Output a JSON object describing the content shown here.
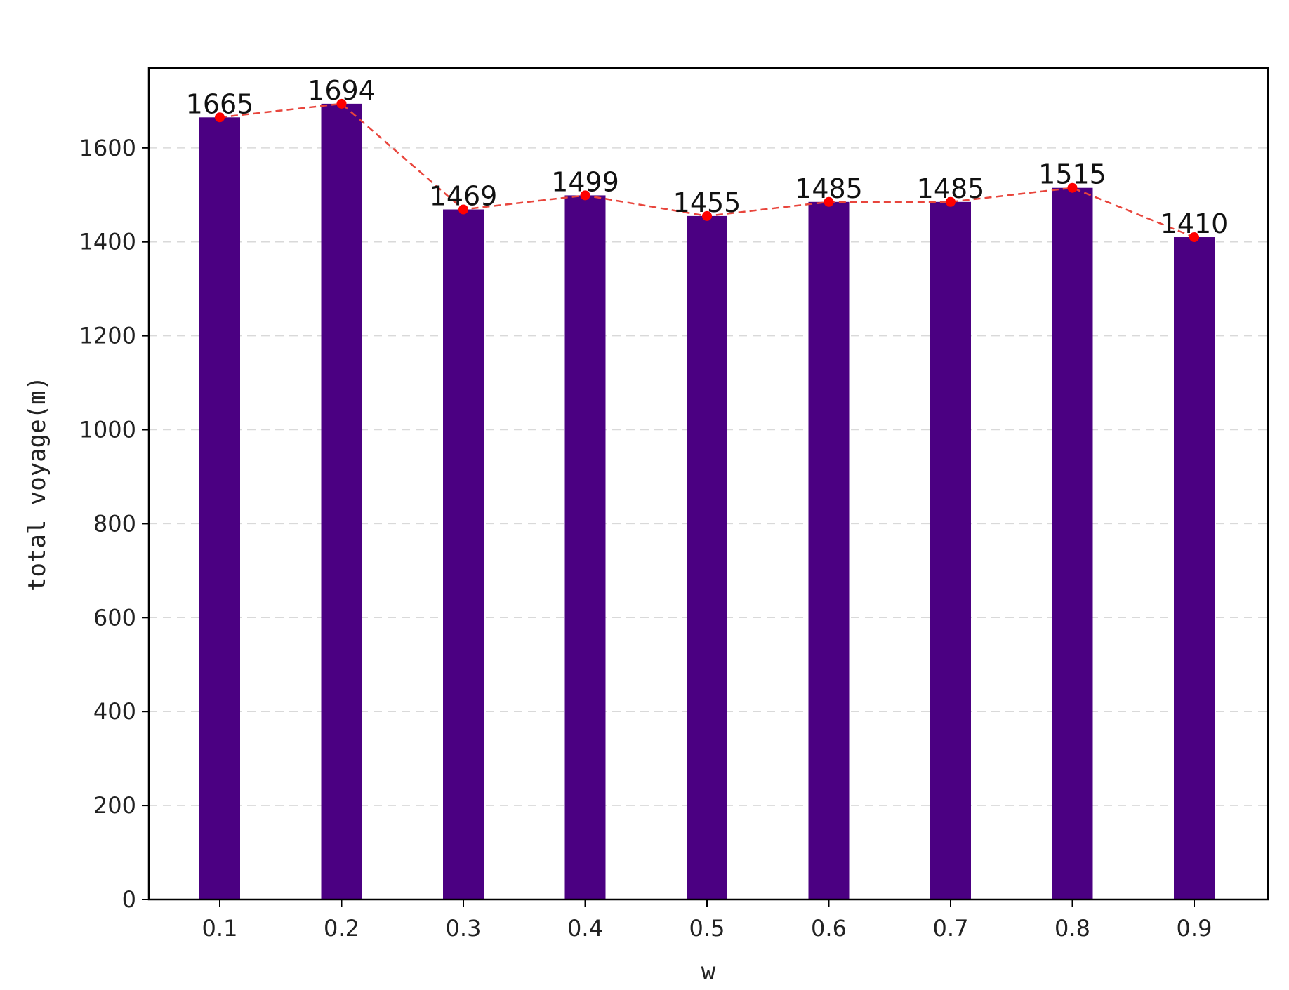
{
  "chart_data": {
    "type": "bar",
    "title": "",
    "xlabel": "w",
    "ylabel": "total voyage(m)",
    "categories": [
      "0.1",
      "0.2",
      "0.3",
      "0.4",
      "0.5",
      "0.6",
      "0.7",
      "0.8",
      "0.9"
    ],
    "values": [
      1665,
      1694,
      1469,
      1499,
      1455,
      1485,
      1485,
      1515,
      1410
    ],
    "data_labels": [
      "1665",
      "1694",
      "1469",
      "1499",
      "1455",
      "1485",
      "1485",
      "1515",
      "1410"
    ],
    "ylim": [
      0,
      1770
    ],
    "yticks": [
      0,
      200,
      400,
      600,
      800,
      1000,
      1200,
      1400,
      1600
    ],
    "ytick_labels": [
      "0",
      "200",
      "400",
      "600",
      "800",
      "1000",
      "1200",
      "1400",
      "1600"
    ],
    "grid": "horizontal dashed",
    "overlay_line": {
      "style": "dashed",
      "marker": "circle",
      "values": [
        1665,
        1694,
        1469,
        1499,
        1455,
        1485,
        1485,
        1515,
        1410
      ]
    },
    "colors": {
      "bar": "#4b0082",
      "line": "#e8453c",
      "marker": "#ff0000",
      "grid": "#d9d9d9",
      "axis": "#000000"
    }
  }
}
